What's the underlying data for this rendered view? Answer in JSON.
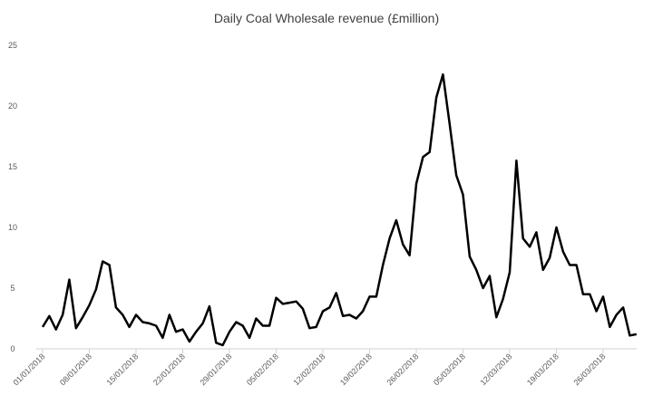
{
  "chart_data": {
    "type": "line",
    "title": "Daily Coal Wholesale revenue (£million)",
    "xlabel": "",
    "ylabel": "",
    "ylim": [
      0,
      25
    ],
    "yticks": [
      0,
      5,
      10,
      15,
      20,
      25
    ],
    "grid": false,
    "legend": "none",
    "line_color": "#000000",
    "xtick_labels": [
      "01/01/2018",
      "08/01/2018",
      "15/01/2018",
      "22/01/2018",
      "29/01/2018",
      "05/02/2018",
      "12/02/2018",
      "19/02/2018",
      "26/02/2018",
      "05/03/2018",
      "12/03/2018",
      "19/03/2018",
      "26/03/2018"
    ],
    "x": [
      "01/01/2018",
      "02/01/2018",
      "03/01/2018",
      "04/01/2018",
      "05/01/2018",
      "06/01/2018",
      "07/01/2018",
      "08/01/2018",
      "09/01/2018",
      "10/01/2018",
      "11/01/2018",
      "12/01/2018",
      "13/01/2018",
      "14/01/2018",
      "15/01/2018",
      "16/01/2018",
      "17/01/2018",
      "18/01/2018",
      "19/01/2018",
      "20/01/2018",
      "21/01/2018",
      "22/01/2018",
      "23/01/2018",
      "24/01/2018",
      "25/01/2018",
      "26/01/2018",
      "27/01/2018",
      "28/01/2018",
      "29/01/2018",
      "30/01/2018",
      "31/01/2018",
      "01/02/2018",
      "02/02/2018",
      "03/02/2018",
      "04/02/2018",
      "05/02/2018",
      "06/02/2018",
      "07/02/2018",
      "08/02/2018",
      "09/02/2018",
      "10/02/2018",
      "11/02/2018",
      "12/02/2018",
      "13/02/2018",
      "14/02/2018",
      "15/02/2018",
      "16/02/2018",
      "17/02/2018",
      "18/02/2018",
      "19/02/2018",
      "20/02/2018",
      "21/02/2018",
      "22/02/2018",
      "23/02/2018",
      "24/02/2018",
      "25/02/2018",
      "26/02/2018",
      "27/02/2018",
      "28/02/2018",
      "01/03/2018",
      "02/03/2018",
      "03/03/2018",
      "04/03/2018",
      "05/03/2018",
      "06/03/2018",
      "07/03/2018",
      "08/03/2018",
      "09/03/2018",
      "10/03/2018",
      "11/03/2018",
      "12/03/2018",
      "13/03/2018",
      "14/03/2018",
      "15/03/2018",
      "16/03/2018",
      "17/03/2018",
      "18/03/2018",
      "19/03/2018",
      "20/03/2018",
      "21/03/2018",
      "22/03/2018",
      "23/03/2018",
      "24/03/2018",
      "25/03/2018",
      "26/03/2018",
      "27/03/2018",
      "28/03/2018",
      "29/03/2018",
      "30/03/2018",
      "31/03/2018"
    ],
    "values": [
      1.8,
      2.7,
      1.6,
      2.8,
      5.7,
      1.7,
      2.6,
      3.6,
      4.9,
      7.2,
      6.9,
      3.4,
      2.8,
      1.8,
      2.8,
      2.2,
      2.1,
      1.9,
      0.9,
      2.8,
      1.4,
      1.6,
      0.6,
      1.4,
      2.1,
      3.5,
      0.5,
      0.3,
      1.4,
      2.2,
      1.9,
      0.9,
      2.5,
      1.9,
      1.9,
      4.2,
      3.7,
      3.8,
      3.9,
      3.3,
      1.7,
      1.8,
      3.1,
      3.4,
      4.6,
      2.7,
      2.8,
      2.5,
      3.1,
      4.3,
      4.3,
      6.9,
      9.1,
      10.6,
      8.6,
      7.7,
      13.6,
      15.8,
      16.2,
      20.7,
      22.6,
      18.5,
      14.3,
      12.7,
      7.6,
      6.5,
      5.0,
      6.0,
      2.6,
      4.1,
      6.3,
      15.5,
      9.1,
      8.4,
      9.6,
      6.5,
      7.5,
      10.0,
      8.0,
      6.9,
      6.9,
      4.5,
      4.5,
      3.1,
      4.3,
      1.8,
      2.8,
      3.4,
      1.1,
      1.2
    ]
  }
}
